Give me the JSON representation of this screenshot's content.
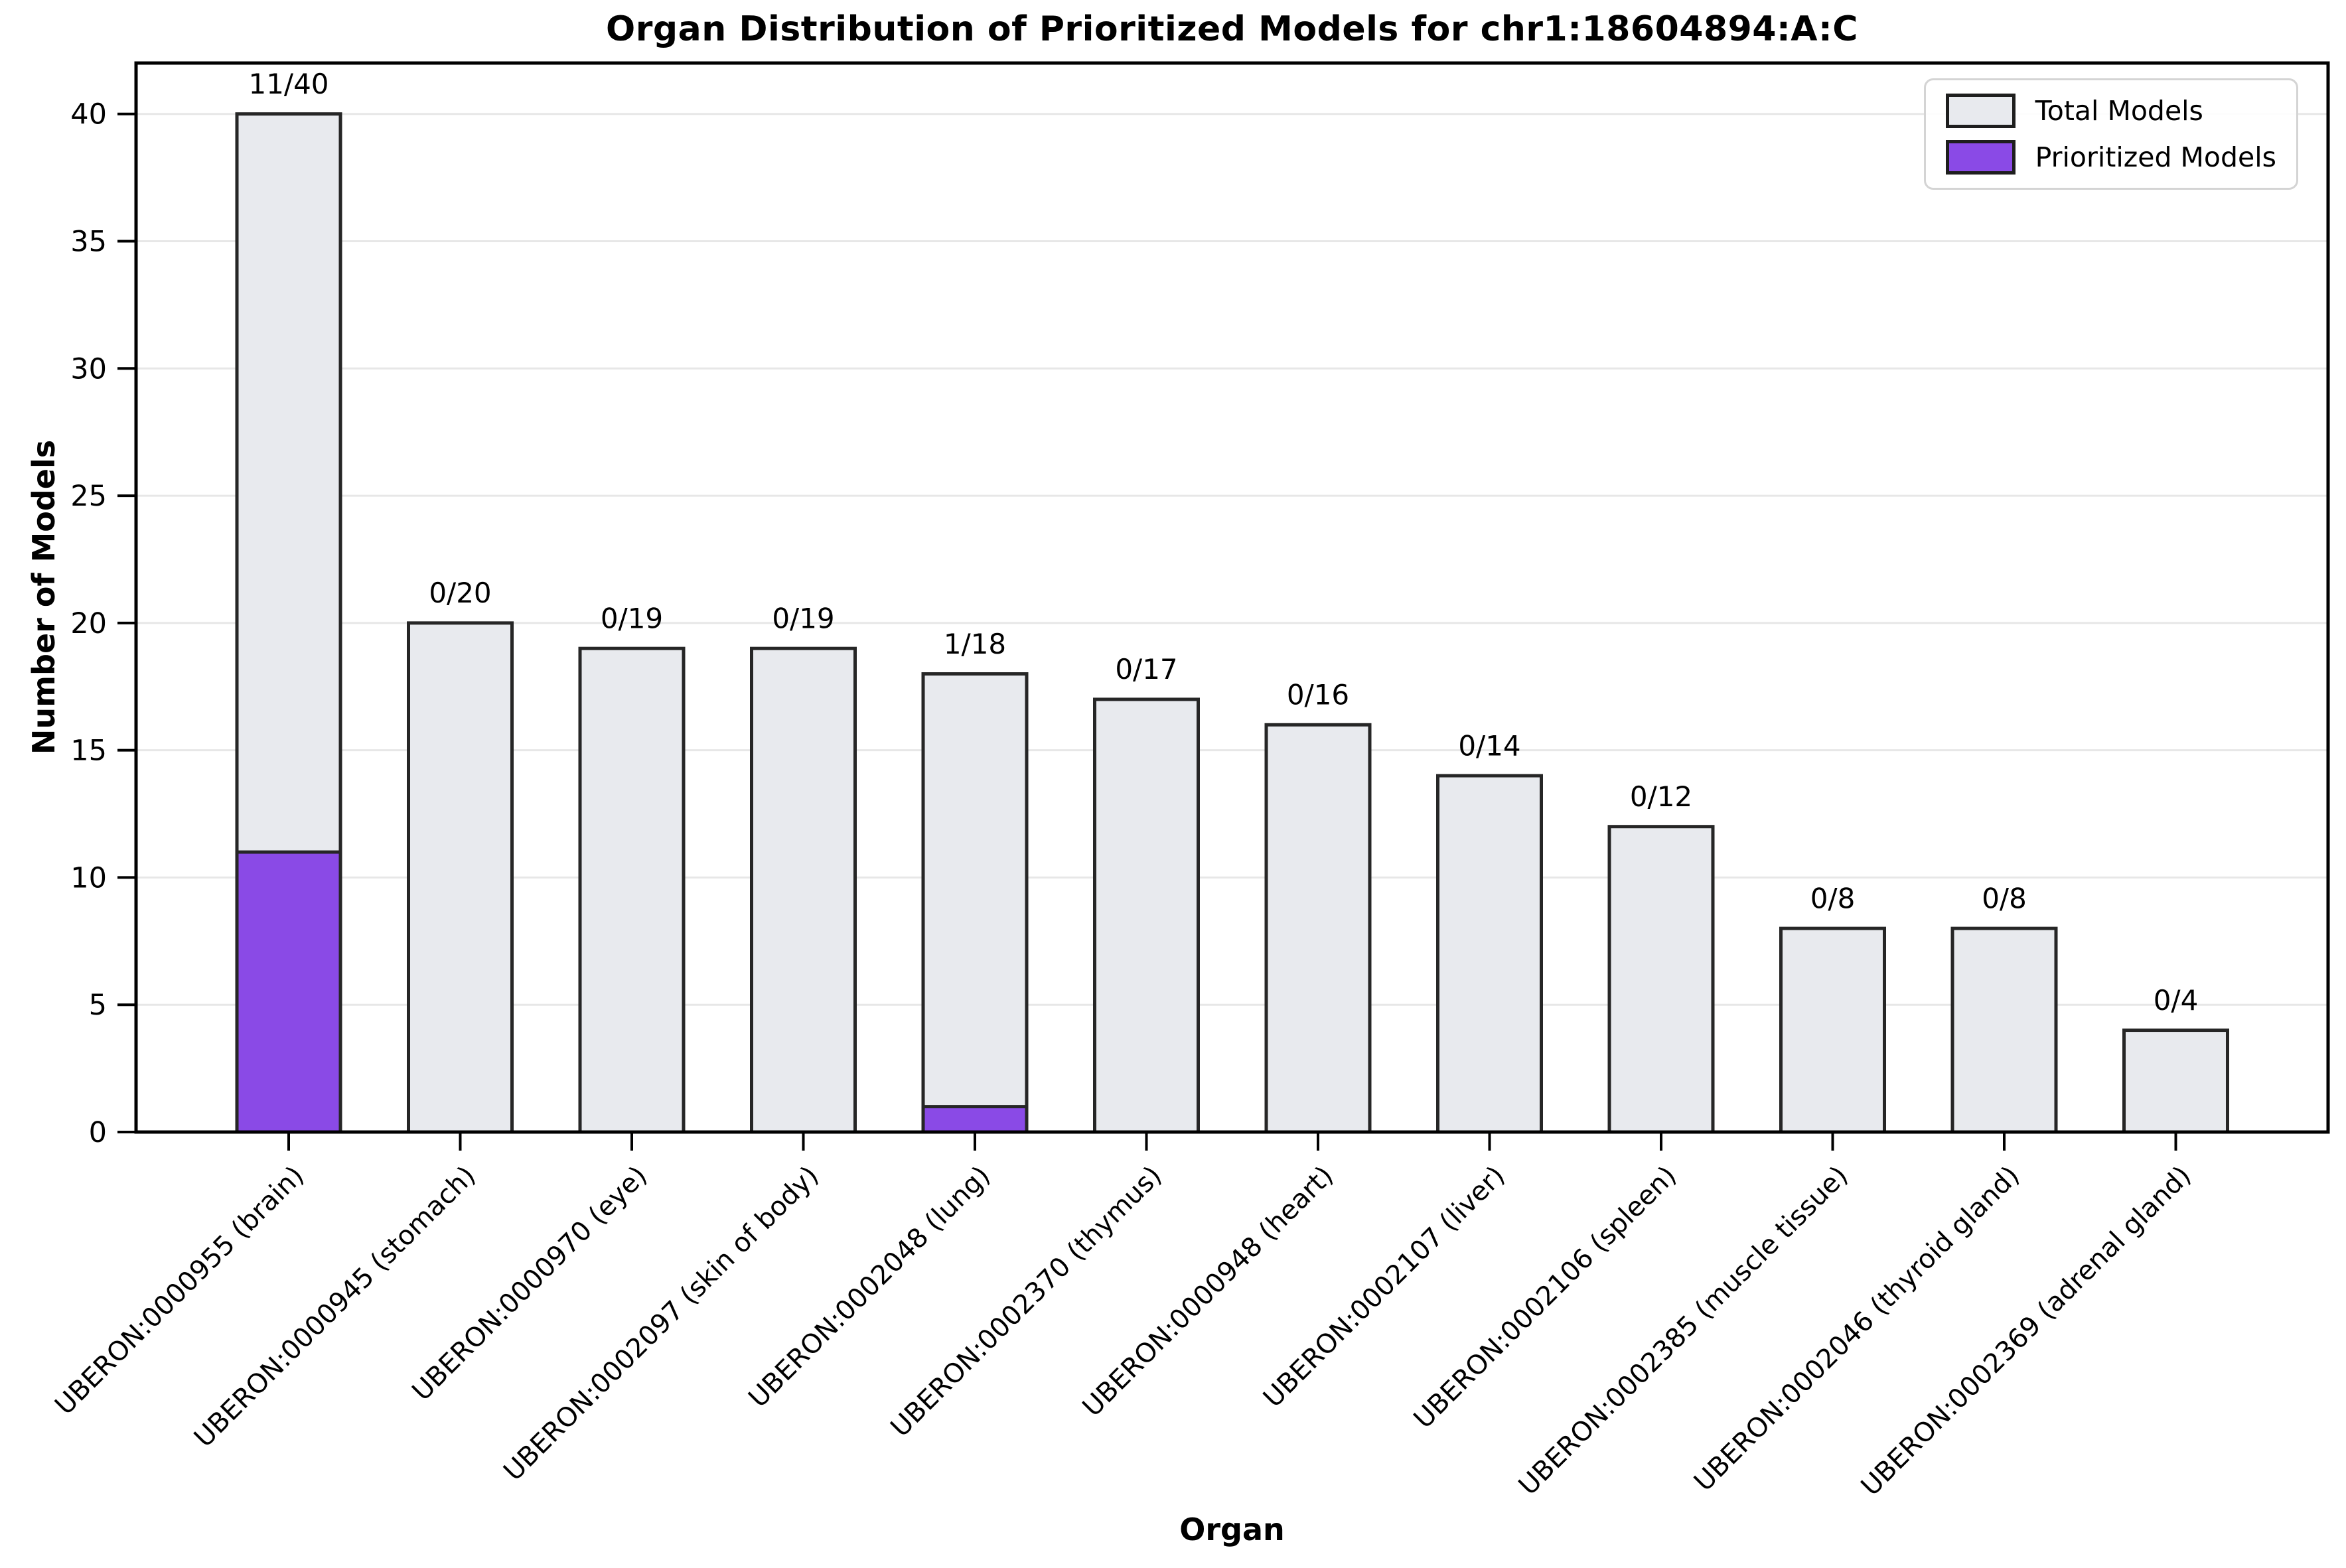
{
  "figure": {
    "title": "Organ Distribution of Prioritized Models for chr1:18604894:A:C",
    "xlabel": "Organ",
    "ylabel": "Number of Models"
  },
  "chart_data": {
    "type": "bar",
    "title": "Organ Distribution of Prioritized Models for chr1:18604894:A:C",
    "xlabel": "Organ",
    "ylabel": "Number of Models",
    "categories": [
      "UBERON:0000955 (brain)",
      "UBERON:0000945 (stomach)",
      "UBERON:0000970 (eye)",
      "UBERON:0002097 (skin of body)",
      "UBERON:0002048 (lung)",
      "UBERON:0002370 (thymus)",
      "UBERON:0000948 (heart)",
      "UBERON:0002107 (liver)",
      "UBERON:0002106 (spleen)",
      "UBERON:0002385 (muscle tissue)",
      "UBERON:0002046 (thyroid gland)",
      "UBERON:0002369 (adrenal gland)"
    ],
    "series": [
      {
        "name": "Total Models",
        "values": [
          40,
          20,
          19,
          19,
          18,
          17,
          16,
          14,
          12,
          8,
          8,
          4
        ],
        "color": "#e8eaee"
      },
      {
        "name": "Prioritized Models",
        "values": [
          11,
          0,
          0,
          0,
          1,
          0,
          0,
          0,
          0,
          0,
          0,
          0
        ],
        "color": "#8a4ae6"
      }
    ],
    "bar_labels": [
      "11/40",
      "0/20",
      "0/19",
      "0/19",
      "1/18",
      "0/17",
      "0/16",
      "0/14",
      "0/12",
      "0/8",
      "0/8",
      "0/4"
    ],
    "yticks": [
      0,
      5,
      10,
      15,
      20,
      25,
      30,
      35,
      40
    ],
    "ylim": [
      0,
      42
    ],
    "grid": "horizontal",
    "legend_position": "upper right",
    "colors": {
      "bar_edge": "#262626",
      "grid": "#e7e7e7",
      "spine": "#000000",
      "tick": "#000000",
      "text": "#000000"
    }
  }
}
